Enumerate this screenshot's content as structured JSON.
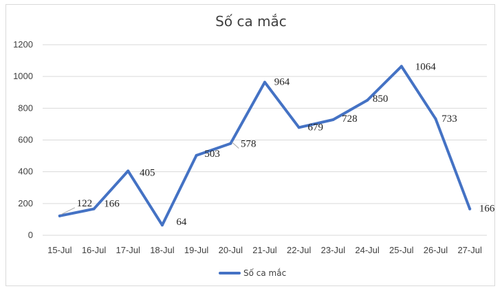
{
  "chart_data": {
    "type": "line",
    "title": "Số ca mắc",
    "categories": [
      "15-Jul",
      "16-Jul",
      "17-Jul",
      "18-Jul",
      "19-Jul",
      "20-Jul",
      "21-Jul",
      "22-Jul",
      "23-Jul",
      "24-Jul",
      "25-Jul",
      "26-Jul",
      "27-Jul"
    ],
    "series": [
      {
        "name": "Số ca mắc",
        "values": [
          122,
          166,
          405,
          64,
          503,
          578,
          964,
          679,
          728,
          850,
          1064,
          733,
          166
        ],
        "color": "#4472c4"
      }
    ],
    "ylim": [
      0,
      1200
    ],
    "yticks": [
      0,
      200,
      400,
      600,
      800,
      1000,
      1200
    ],
    "grid": true,
    "legend_position": "bottom",
    "data_labels": true
  }
}
